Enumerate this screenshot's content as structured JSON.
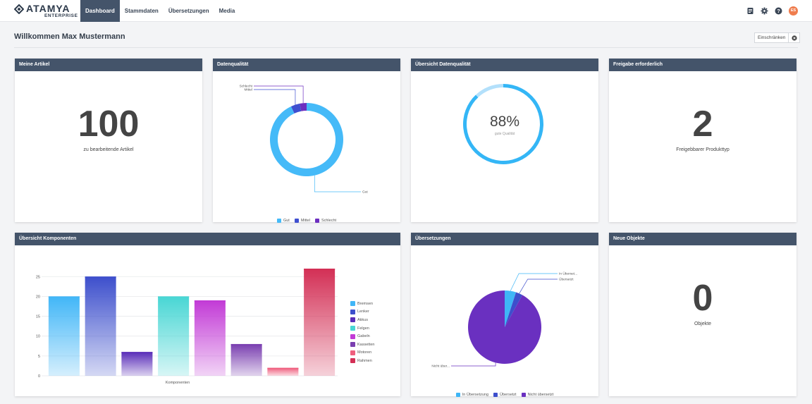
{
  "brand": {
    "name": "ATAMYA",
    "sub": "ENTERPRISE"
  },
  "nav": [
    {
      "label": "Dashboard",
      "active": true
    },
    {
      "label": "Stammdaten"
    },
    {
      "label": "Übersetzungen"
    },
    {
      "label": "Media"
    }
  ],
  "toolbar": {
    "icons": [
      "notes-icon",
      "gear-icon",
      "help-icon"
    ],
    "avatar": "ES",
    "avatar_color": "#ef7d4e"
  },
  "page": {
    "title": "Willkommen Max Mustermann",
    "restrict_label": "Einschränken"
  },
  "colors": {
    "header": "#44546a",
    "accent": "#3db6f5"
  },
  "cards": {
    "my_articles": {
      "title": "Meine Artikel",
      "value": "100",
      "label": "zu bearbeitende Artikel"
    },
    "data_quality": {
      "title": "Datenqualität"
    },
    "quality_overview": {
      "title": "Übersicht Datenqualität",
      "percent": "88%",
      "caption": "gute Qualität"
    },
    "approval": {
      "title": "Freigabe erforderlich",
      "value": "2",
      "label": "Freigebbarer Produkttyp"
    },
    "components": {
      "title": "Übersicht Komponenten"
    },
    "translations": {
      "title": "Übersetzungen"
    },
    "new_objects": {
      "title": "Neue Objekte",
      "value": "0",
      "label": "Objekte"
    }
  },
  "chart_data": [
    {
      "type": "pie",
      "variant": "donut",
      "title": "Datenqualität",
      "labels": [
        "Gut",
        "Mittel",
        "Schlecht"
      ],
      "values": [
        93,
        4,
        3
      ],
      "colors": [
        "#45baf8",
        "#3f4fd0",
        "#6c2fc0"
      ],
      "legend": "bottom"
    },
    {
      "type": "pie",
      "variant": "gauge",
      "title": "Übersicht Datenqualität",
      "values": [
        88,
        12
      ],
      "colors": [
        "#34b6f6",
        "#b3e0fb"
      ]
    },
    {
      "type": "bar",
      "title": "Übersicht Komponenten",
      "xlabel": "Komponenten",
      "categories": [
        "Bremsen",
        "Lenker",
        "Akkus",
        "Felgen",
        "Gabeln",
        "Kassetten",
        "Motoren",
        "Rahmen"
      ],
      "values": [
        20,
        25,
        6,
        20,
        19,
        8,
        2,
        27
      ],
      "colors": [
        "#41b6f7",
        "#3d4fcc",
        "#5a2db8",
        "#48d6d4",
        "#c23ad6",
        "#7a3fb0",
        "#ef5f7e",
        "#d32f55"
      ],
      "yticks": [
        0,
        5,
        10,
        15,
        20,
        25
      ],
      "ylim": [
        0,
        27
      ],
      "grid": true,
      "legend": "right"
    },
    {
      "type": "pie",
      "title": "Übersetzungen",
      "labels": [
        "In Übersetzung",
        "Übersetzt",
        "Nicht übersetzt"
      ],
      "annotation_labels": [
        "In Überset...",
        "Übersetzt",
        "Nicht über..."
      ],
      "values": [
        5,
        3,
        92
      ],
      "colors": [
        "#3fb6f6",
        "#3d4fcc",
        "#6a30c0"
      ],
      "legend": "bottom"
    }
  ]
}
